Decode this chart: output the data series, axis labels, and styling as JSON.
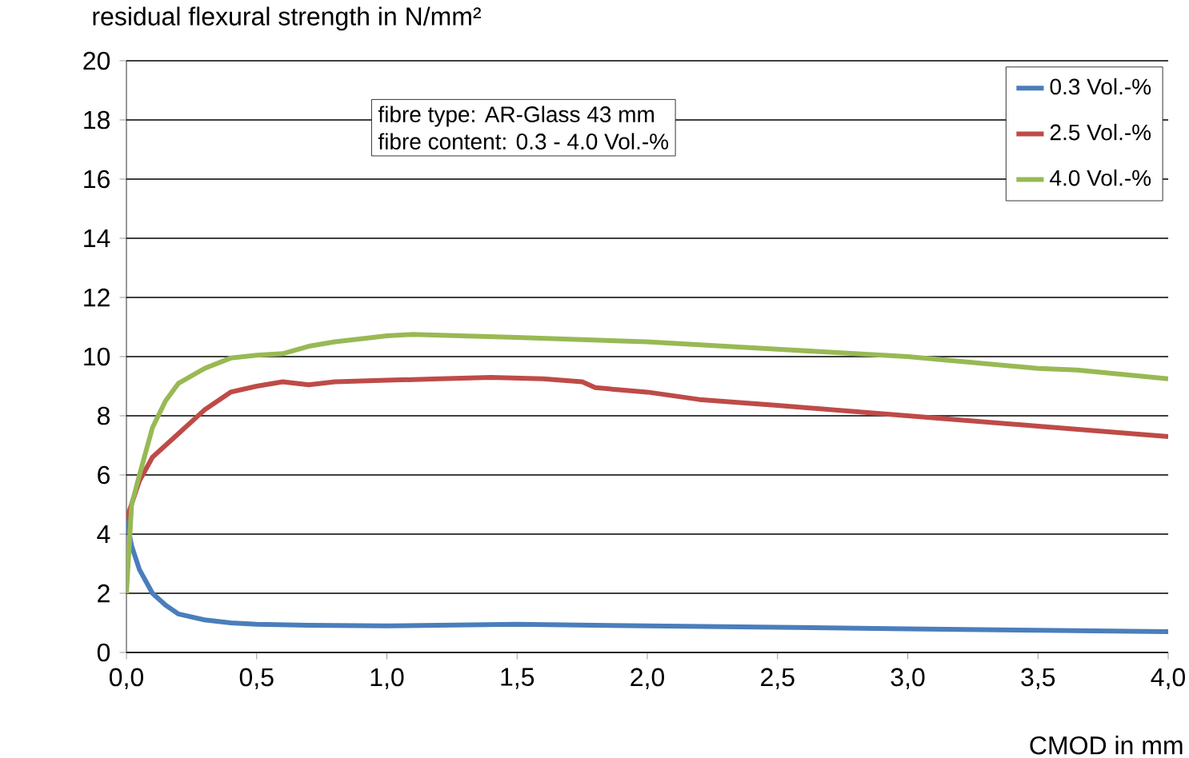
{
  "chart_data": {
    "type": "line",
    "ylabel": "residual flexural strength in N/mm²",
    "xlabel": "CMOD in mm",
    "annotations": [
      "fibre type: AR-Glass 43 mm",
      "fibre content: 0.3 - 4.0 Vol.-%"
    ],
    "xlim": [
      0,
      4
    ],
    "ylim": [
      0,
      20
    ],
    "xticks": [
      {
        "value": 0,
        "label": "0,0"
      },
      {
        "value": 0.5,
        "label": "0,5"
      },
      {
        "value": 1,
        "label": "1,0"
      },
      {
        "value": 1.5,
        "label": "1,5"
      },
      {
        "value": 2,
        "label": "2,0"
      },
      {
        "value": 2.5,
        "label": "2,5"
      },
      {
        "value": 3,
        "label": "3,0"
      },
      {
        "value": 3.5,
        "label": "3,5"
      },
      {
        "value": 4,
        "label": "4,0"
      }
    ],
    "yticks": [
      0,
      2,
      4,
      6,
      8,
      10,
      12,
      14,
      16,
      18,
      20
    ],
    "grid": "y",
    "legend": "top right",
    "marker": "none",
    "line_style": "solid",
    "series": [
      {
        "name": "0.3 Vol.-%",
        "color": "#4a7ebb",
        "x": [
          0,
          0.02,
          0.05,
          0.1,
          0.15,
          0.2,
          0.3,
          0.4,
          0.5,
          0.7,
          1.0,
          1.5,
          2.0,
          2.5,
          3.0,
          3.5,
          4.0
        ],
        "values": [
          4.5,
          3.6,
          2.8,
          2.0,
          1.6,
          1.3,
          1.1,
          1.0,
          0.95,
          0.92,
          0.9,
          0.95,
          0.9,
          0.85,
          0.8,
          0.75,
          0.7
        ]
      },
      {
        "name": "2.5 Vol.-%",
        "color": "#be4b48",
        "x": [
          0,
          0.05,
          0.1,
          0.2,
          0.3,
          0.4,
          0.5,
          0.6,
          0.7,
          0.8,
          1.0,
          1.2,
          1.4,
          1.6,
          1.75,
          1.8,
          2.0,
          2.2,
          2.5,
          3.0,
          3.5,
          4.0
        ],
        "values": [
          4.5,
          5.8,
          6.6,
          7.4,
          8.2,
          8.8,
          9.0,
          9.15,
          9.05,
          9.15,
          9.2,
          9.25,
          9.3,
          9.25,
          9.15,
          8.95,
          8.8,
          8.55,
          8.35,
          8.0,
          7.65,
          7.3
        ]
      },
      {
        "name": "4.0 Vol.-%",
        "color": "#98b954",
        "x": [
          0,
          0.02,
          0.05,
          0.1,
          0.15,
          0.2,
          0.3,
          0.4,
          0.5,
          0.6,
          0.7,
          0.8,
          1.0,
          1.1,
          1.3,
          1.5,
          2.0,
          2.5,
          3.0,
          3.5,
          3.65,
          4.0
        ],
        "values": [
          2.0,
          5.0,
          6.0,
          7.6,
          8.5,
          9.1,
          9.6,
          9.95,
          10.05,
          10.1,
          10.35,
          10.5,
          10.7,
          10.75,
          10.7,
          10.65,
          10.5,
          10.25,
          10.0,
          9.6,
          9.55,
          9.25
        ]
      }
    ]
  }
}
